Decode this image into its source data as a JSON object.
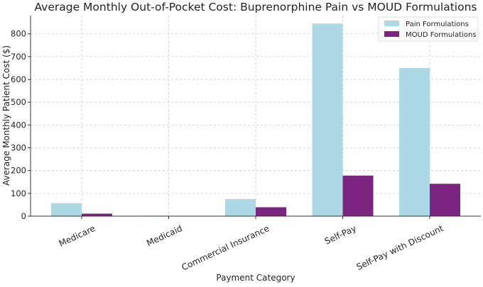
{
  "chart_data": {
    "type": "bar",
    "title": "Average Monthly Out-of-Pocket Cost: Buprenorphine Pain vs MOUD Formulations",
    "xlabel": "Payment Category",
    "ylabel": "Average Monthly Patient Cost ($)",
    "categories": [
      "Medicare",
      "Medicaid",
      "Commercial Insurance",
      "Self-Pay",
      "Self-Pay with Discount"
    ],
    "series": [
      {
        "name": "Pain Formulations",
        "color": "#add8e6",
        "values": [
          57,
          2,
          75,
          845,
          650
        ]
      },
      {
        "name": "MOUD Formulations",
        "color": "#7b2580",
        "values": [
          11,
          1,
          39,
          178,
          142
        ]
      }
    ],
    "ylim": [
      0,
      880
    ],
    "yticks": [
      0,
      100,
      200,
      300,
      400,
      500,
      600,
      700,
      800
    ],
    "grid": true,
    "legend_position": "top-right"
  }
}
